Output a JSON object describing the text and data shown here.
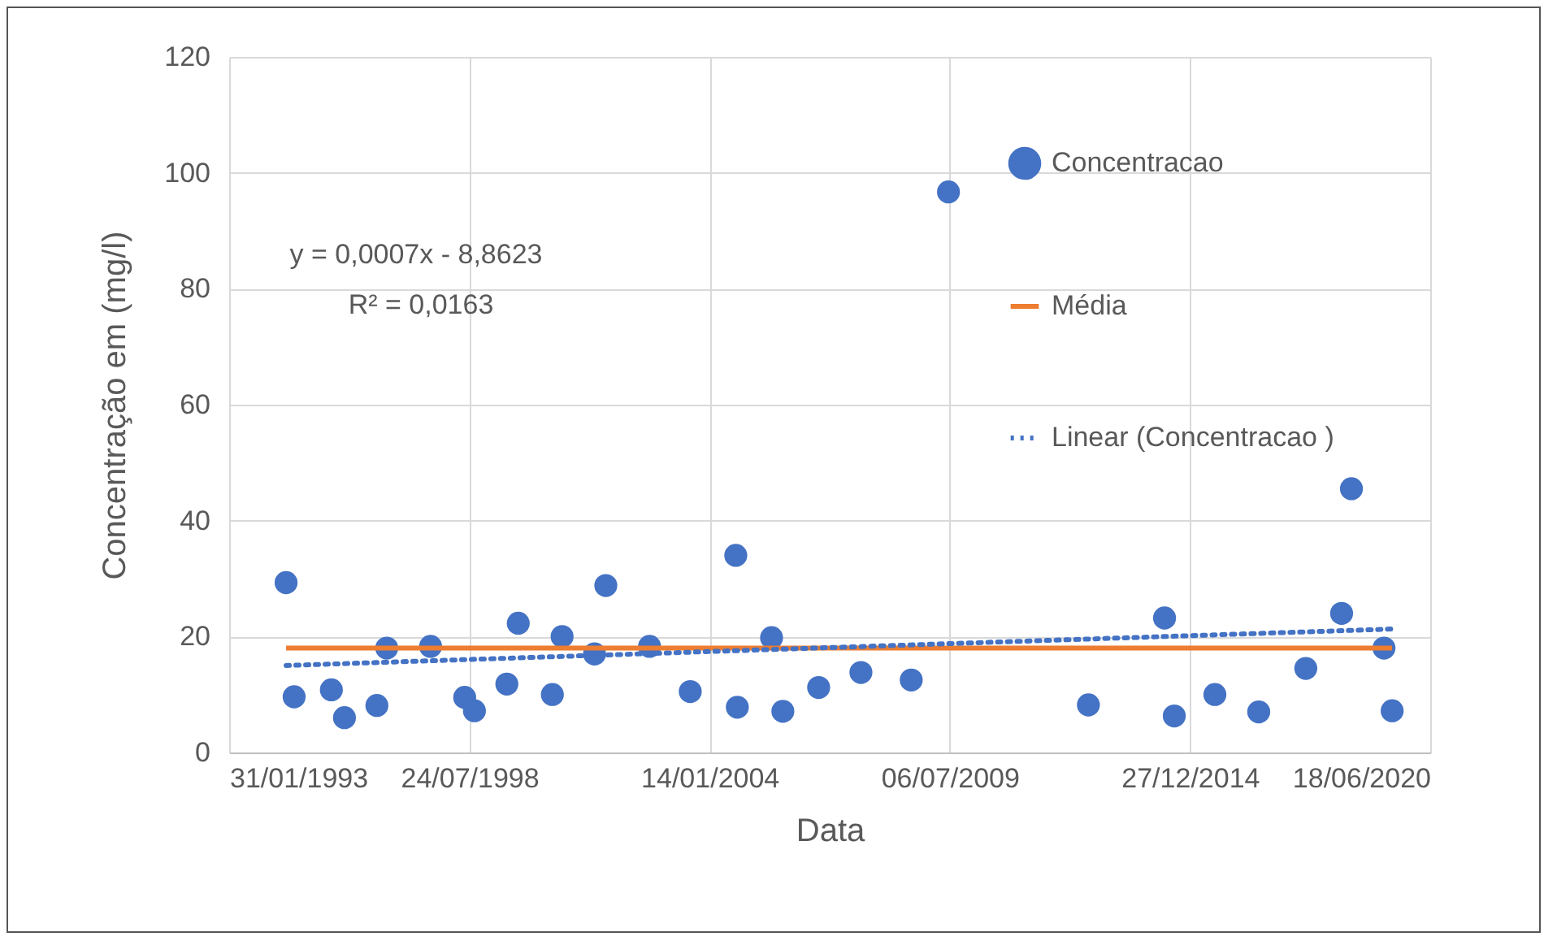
{
  "chart_data": {
    "type": "scatter",
    "xlabel": "Data",
    "ylabel": "Concentração em (mg/l)",
    "annotations": [
      "y = 0,0007x - 8,8623",
      "R² = 0,0163"
    ],
    "xlim": [
      "1993-01-31",
      "2020-06-18"
    ],
    "xticks": [
      {
        "value": "1993-01-31",
        "label": "31/01/1993"
      },
      {
        "value": "1998-07-24",
        "label": "24/07/1998"
      },
      {
        "value": "2004-01-14",
        "label": "14/01/2004"
      },
      {
        "value": "2009-07-06",
        "label": "06/07/2009"
      },
      {
        "value": "2014-12-27",
        "label": "27/12/2014"
      },
      {
        "value": "2020-06-18",
        "label": "18/06/2020"
      }
    ],
    "ylim": [
      0,
      120
    ],
    "yticks": [
      0,
      20,
      40,
      60,
      80,
      100,
      120
    ],
    "grid": true,
    "legend": "right",
    "marker": "circle",
    "series": [
      {
        "name": "Concentracao",
        "color": "#4472c4",
        "x": [
          "1994-05-20",
          "1994-07-26",
          "1995-06-01",
          "1995-09-18",
          "1996-06-14",
          "1996-09-04",
          "1997-09-04",
          "1998-06-15",
          "1998-09-04",
          "1999-06-01",
          "1999-09-04",
          "2000-06-14",
          "2000-09-03",
          "2001-05-31",
          "2001-09-02",
          "2002-09-01",
          "2003-08-06",
          "2004-08-19",
          "2004-09-01",
          "2005-06-13",
          "2005-09-15",
          "2006-07-10",
          "2007-06-27",
          "2008-08-19",
          "2009-06-25",
          "2012-09-02",
          "2014-05-29",
          "2014-08-18",
          "2015-07-22",
          "2016-07-21",
          "2017-08-17",
          "2018-06-11",
          "2018-09-01",
          "2019-05-30",
          "2019-08-06"
        ],
        "values": [
          29.3,
          9.6,
          10.8,
          6.0,
          8.1,
          18.0,
          18.3,
          9.5,
          7.2,
          11.8,
          22.3,
          10.0,
          20.0,
          17.0,
          28.8,
          18.3,
          10.5,
          34.0,
          7.8,
          19.8,
          7.1,
          11.2,
          13.8,
          12.5,
          96.7,
          8.2,
          23.2,
          6.3,
          10.0,
          7.0,
          14.5,
          24.0,
          45.5,
          18.0,
          7.2
        ]
      },
      {
        "name": "Média",
        "type": "line",
        "color": "#ed7d31",
        "line_style": "solid",
        "marker": "none",
        "x": [
          "1994-05-20",
          "2019-08-06"
        ],
        "values": [
          18.0,
          18.0
        ]
      },
      {
        "name": "Linear (Concentracao )",
        "type": "line",
        "color": "#4472c4",
        "line_style": "dotted",
        "marker": "none",
        "x": [
          "1994-05-20",
          "2019-08-06"
        ],
        "values": [
          15.0,
          21.3
        ]
      }
    ]
  }
}
